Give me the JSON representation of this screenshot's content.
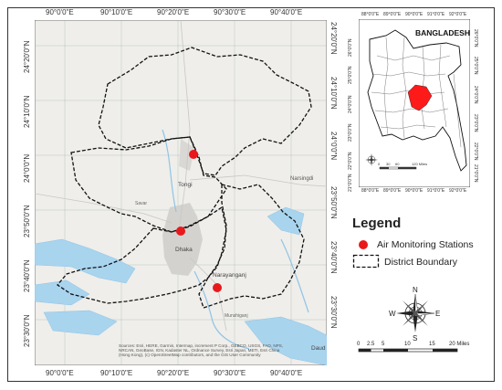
{
  "main_map": {
    "x_ticks": [
      "90°0'0\"E",
      "90°10'0\"E",
      "90°20'0\"E",
      "90°30'0\"E",
      "90°40'0\"E"
    ],
    "y_ticks": [
      "24°20'0\"N",
      "24°10'0\"N",
      "24°0'0\"N",
      "23°50'0\"N",
      "23°40'0\"N",
      "23°30'0\"N"
    ],
    "place_labels": [
      "Tongi",
      "Dhaka",
      "Narayanganj",
      "Narsingdi",
      "Savar",
      "Munshiganj",
      "Daud"
    ],
    "attribution": "Sources: Esri, HERE, Garmin, Intermap, increment P Corp., GEBCO, USGS, FAO, NPS, NRCAN, GeoBase, IGN, Kadaster NL, Ordnance Survey, Esri Japan, METI, Esri China (Hong Kong), (c) OpenStreetMap contributors, and the GIS User Community",
    "stations": [
      {
        "name": "Tongi station"
      },
      {
        "name": "Dhaka station"
      },
      {
        "name": "Narayanganj station"
      }
    ],
    "colors": {
      "station": "#e8191c",
      "water": "#a9d4ee",
      "land": "#efeeea",
      "urban": "#d4d2ce"
    }
  },
  "inset": {
    "title": "BANGLADESH",
    "x_ticks": [
      "88°0'0\"E",
      "89°0'0\"E",
      "90°0'0\"E",
      "91°0'0\"E",
      "92°0'0\"E"
    ],
    "y_ticks": [
      "26°0'0\"N",
      "25°0'0\"N",
      "24°0'0\"N",
      "23°0'0\"N",
      "22°0'0\"N",
      "21°0'0\"N"
    ],
    "scale_labels": [
      "0",
      "30",
      "60",
      "120 Miles"
    ],
    "highlight_color": "#ff1a1a"
  },
  "legend": {
    "title": "Legend",
    "items": [
      {
        "label": "Air Monitoring Stations"
      },
      {
        "label": "District Boundary"
      }
    ]
  },
  "compass": {
    "n": "N",
    "s": "S",
    "e": "E",
    "w": "W"
  },
  "scalebar": {
    "labels": [
      "0",
      "2.5",
      "5",
      "10",
      "15",
      "20 Miles"
    ]
  }
}
